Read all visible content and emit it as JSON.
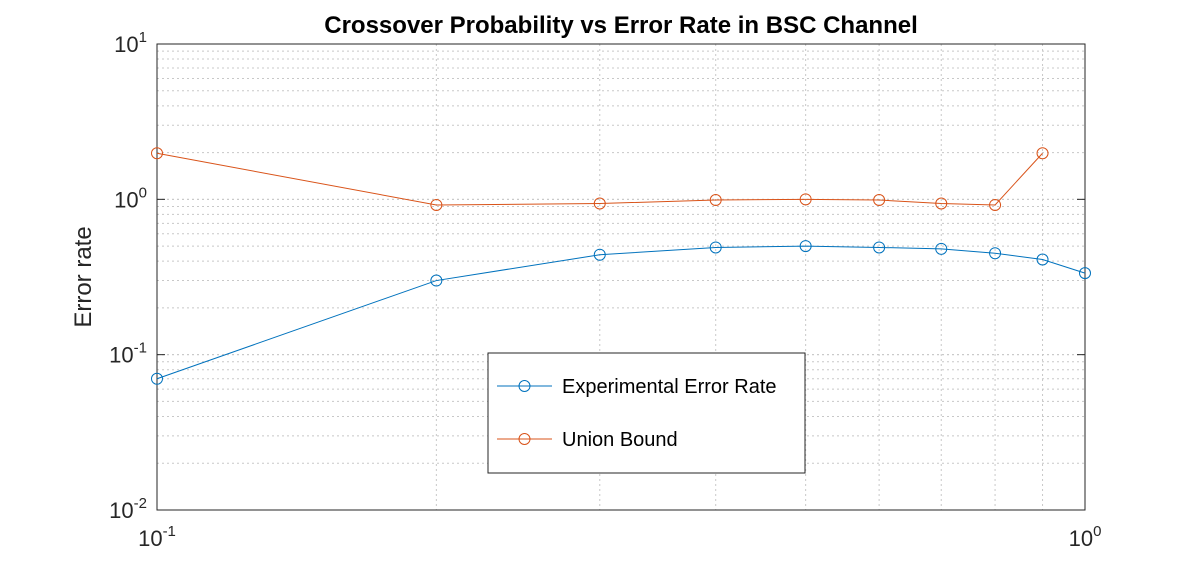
{
  "chart_data": {
    "type": "line",
    "title": "Crossover Probability vs Error Rate in BSC Channel",
    "xlabel": "",
    "ylabel": "Error rate",
    "xscale": "log",
    "yscale": "log",
    "xlim": [
      0.1,
      1
    ],
    "ylim": [
      0.01,
      10
    ],
    "grid": true,
    "legend_position": "lower-center",
    "x_ticks": [
      {
        "value": 0.1,
        "base": "10",
        "exp": "-1"
      },
      {
        "value": 1,
        "base": "10",
        "exp": "0"
      }
    ],
    "y_ticks": [
      {
        "value": 0.01,
        "base": "10",
        "exp": "-2"
      },
      {
        "value": 0.1,
        "base": "10",
        "exp": "-1"
      },
      {
        "value": 1,
        "base": "10",
        "exp": "0"
      },
      {
        "value": 10,
        "base": "10",
        "exp": "1"
      }
    ],
    "series": [
      {
        "name": "Experimental Error Rate",
        "color": "#0072BD",
        "marker": "circle",
        "x": [
          0.1,
          0.2,
          0.3,
          0.4,
          0.5,
          0.6,
          0.7,
          0.8,
          0.9,
          1.0
        ],
        "y": [
          0.07,
          0.3,
          0.44,
          0.49,
          0.5,
          0.49,
          0.48,
          0.45,
          0.41,
          0.335
        ]
      },
      {
        "name": "Union Bound",
        "color": "#D95319",
        "marker": "circle",
        "x": [
          0.1,
          0.2,
          0.3,
          0.4,
          0.5,
          0.6,
          0.7,
          0.8,
          0.9
        ],
        "y": [
          1.98,
          0.92,
          0.94,
          0.99,
          1.0,
          0.99,
          0.94,
          0.92,
          1.98
        ]
      }
    ]
  }
}
